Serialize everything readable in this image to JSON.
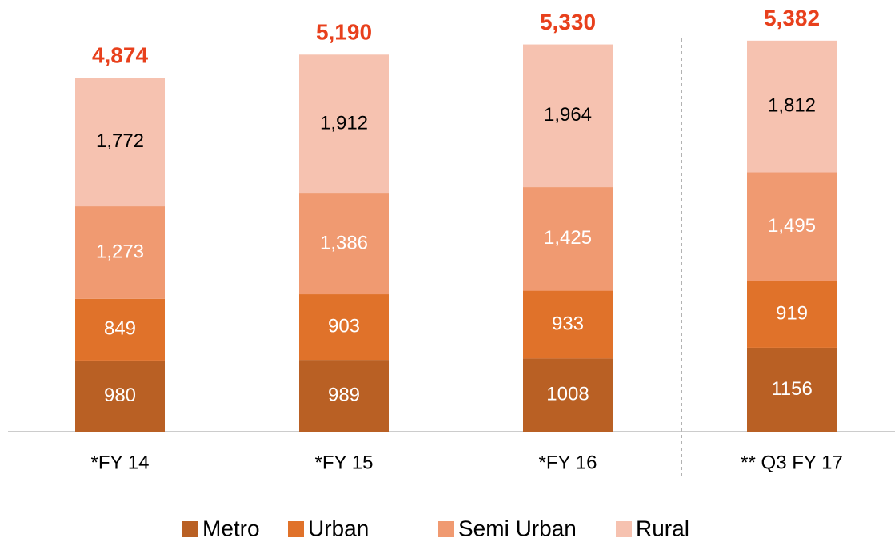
{
  "chart_data": {
    "type": "stacked_bar",
    "categories": [
      "*FY 14",
      "*FY 15",
      "*FY 16",
      "** Q3 FY 17"
    ],
    "series": [
      {
        "name": "Metro",
        "color": "#b96024",
        "values": [
          980,
          989,
          1008,
          1156
        ]
      },
      {
        "name": "Urban",
        "color": "#e0722a",
        "values": [
          849,
          903,
          933,
          919
        ]
      },
      {
        "name": "Semi Urban",
        "color": "#f09a71",
        "values": [
          1273,
          1386,
          1425,
          1495
        ],
        "value_labels": [
          "1,273",
          "1,386",
          "1,425",
          "1,495"
        ]
      },
      {
        "name": "Rural",
        "color": "#f6c2b0",
        "values": [
          1772,
          1912,
          1964,
          1812
        ],
        "value_labels": [
          "1,772",
          "1,912",
          "1,964",
          "1,812"
        ]
      }
    ],
    "totals": [
      4874,
      5190,
      5330,
      5382
    ],
    "total_labels": [
      "4,874",
      "5,190",
      "5,330",
      "5,382"
    ],
    "total_color": "#e8401c"
  }
}
